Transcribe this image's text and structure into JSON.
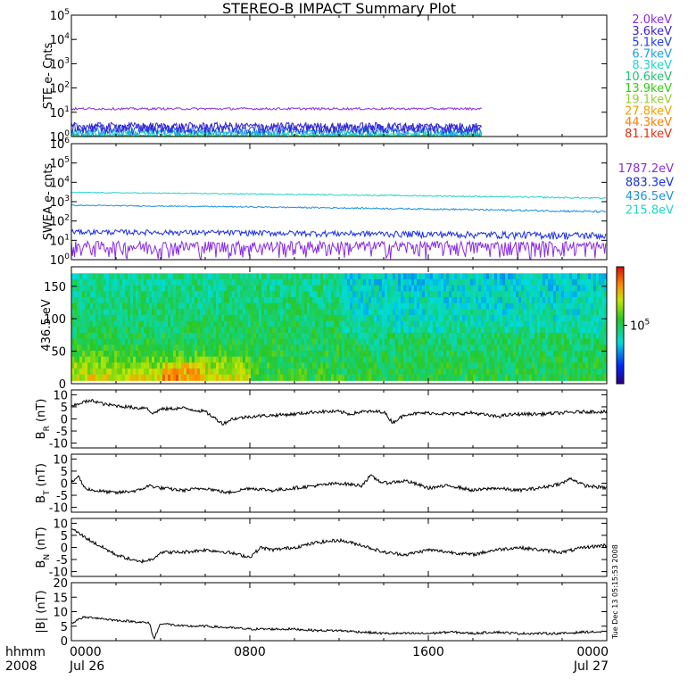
{
  "title": "STEREO-B IMPACT Summary Plot",
  "timestamp_note": "Tue Dec 13 05:15:53 2008",
  "chart_data": [
    {
      "type": "line",
      "panel": "STE electrons",
      "ylabel": "STE e- Cnts",
      "yscale": "log",
      "ylim": [
        1,
        100000
      ],
      "yticks": [
        {
          "base": "10",
          "exp": "0"
        },
        {
          "base": "10",
          "exp": "1"
        },
        {
          "base": "10",
          "exp": "2"
        },
        {
          "base": "10",
          "exp": "3"
        },
        {
          "base": "10",
          "exp": "4"
        },
        {
          "base": "10",
          "exp": "5"
        }
      ],
      "data_end_hours": 18.4,
      "series": [
        {
          "name": "2.0keV",
          "color": "#8a2be2",
          "level": 14,
          "noise": 1.5
        },
        {
          "name": "3.6keV",
          "color": "#3b1fd1",
          "level": 2.6,
          "noise": 1.2
        },
        {
          "name": "5.1keV",
          "color": "#2040e0",
          "level": 2.2,
          "noise": 1.0
        },
        {
          "name": "6.7keV",
          "color": "#1ea0e0",
          "level": 1.6,
          "noise": 0.6
        },
        {
          "name": "8.3keV",
          "color": "#22d3c8",
          "level": 1.3,
          "noise": 0.4
        },
        {
          "name": "10.6keV",
          "color": "#20c070",
          "level": 1.1,
          "noise": 0.2
        },
        {
          "name": "13.9keV",
          "color": "#33cc11",
          "level": 1.05,
          "noise": 0.1
        },
        {
          "name": "19.1keV",
          "color": "#9acd32",
          "level": 1.02,
          "noise": 0.05
        },
        {
          "name": "27.8keV",
          "color": "#f0a000",
          "level": 1.0,
          "noise": 0.0
        },
        {
          "name": "44.3keV",
          "color": "#ff7f00",
          "level": 1.0,
          "noise": 0.0
        },
        {
          "name": "81.1keV",
          "color": "#e03010",
          "level": 1.0,
          "noise": 0.0
        }
      ]
    },
    {
      "type": "line",
      "panel": "SWEA electrons",
      "ylabel": "SWEA e- cnts",
      "yscale": "log",
      "ylim": [
        1,
        1000000
      ],
      "yticks": [
        {
          "base": "10",
          "exp": "0"
        },
        {
          "base": "10",
          "exp": "1"
        },
        {
          "base": "10",
          "exp": "2"
        },
        {
          "base": "10",
          "exp": "3"
        },
        {
          "base": "10",
          "exp": "4"
        },
        {
          "base": "10",
          "exp": "5"
        },
        {
          "base": "10",
          "exp": "6"
        }
      ],
      "series": [
        {
          "name": "1787.2eV",
          "color": "#8a2be2",
          "start": 5,
          "end": 5,
          "noise": 4
        },
        {
          "name": "883.3eV",
          "color": "#1a2ee0",
          "start": 28,
          "end": 18,
          "noise": 8
        },
        {
          "name": "436.5eV",
          "color": "#1e90e0",
          "start": 650,
          "end": 300,
          "noise": 40
        },
        {
          "name": "215.8eV",
          "color": "#22d3c8",
          "start": 3000,
          "end": 1500,
          "noise": 150
        }
      ]
    },
    {
      "type": "heatmap",
      "panel": "436.5 eV pitch angle",
      "ylabel": "436.5 eV",
      "ylim": [
        0,
        180
      ],
      "yticks": [
        "0",
        "50",
        "100",
        "150"
      ],
      "colorbar_label": {
        "base": "10",
        "exp": "5"
      }
    },
    {
      "type": "line",
      "panel": "BR",
      "ylabel": {
        "main": "B",
        "sub": "R",
        "unit": "(nT)"
      },
      "ylim": [
        -12,
        12
      ],
      "yticks": [
        "-10",
        "-5",
        "0",
        "5",
        "10"
      ],
      "x": [
        0,
        0.5,
        1,
        1.5,
        2,
        3,
        3.4,
        3.6,
        4,
        5,
        6,
        6.8,
        7.2,
        8,
        9,
        10,
        11,
        12,
        12.5,
        13,
        14,
        14.4,
        15,
        16,
        17,
        18,
        19,
        20,
        21,
        22,
        23,
        24
      ],
      "values": [
        5,
        7,
        7.5,
        6,
        5.5,
        4.5,
        4.8,
        2,
        4,
        4.5,
        3,
        -2,
        0,
        1,
        1.5,
        2,
        3,
        3,
        2,
        3,
        3,
        -1.5,
        2,
        2.5,
        2,
        2.5,
        1,
        2,
        2,
        2.5,
        3,
        3
      ]
    },
    {
      "type": "line",
      "panel": "BT",
      "ylabel": {
        "main": "B",
        "sub": "T",
        "unit": "(nT)"
      },
      "ylim": [
        -12,
        12
      ],
      "yticks": [
        "-10",
        "-5",
        "0",
        "5",
        "10"
      ],
      "x": [
        0,
        0.3,
        0.6,
        1,
        2,
        3,
        3.5,
        4,
        5,
        6,
        7,
        8,
        9,
        10,
        11,
        12,
        13,
        13.4,
        14,
        15,
        16,
        17,
        18,
        19,
        20,
        21,
        22,
        22.4,
        23,
        24
      ],
      "values": [
        0,
        3,
        -2,
        -3,
        -4,
        -3,
        -1,
        -2,
        -3,
        -2,
        -4,
        -2,
        -3,
        -2,
        -1,
        0,
        -1,
        3,
        0,
        1,
        -2,
        -1,
        -3,
        -2,
        -3,
        -2,
        0,
        2,
        -1,
        -2
      ]
    },
    {
      "type": "line",
      "panel": "BN",
      "ylabel": {
        "main": "B",
        "sub": "N",
        "unit": "(nT)"
      },
      "ylim": [
        -12,
        12
      ],
      "yticks": [
        "-10",
        "-5",
        "0",
        "5",
        "10"
      ],
      "x": [
        0,
        0.3,
        1,
        2,
        3,
        3.6,
        4,
        5,
        6,
        7,
        8,
        8.5,
        9,
        10,
        11,
        12,
        13,
        14,
        15,
        16,
        17,
        18,
        19,
        20,
        21,
        22,
        23,
        24
      ],
      "values": [
        8,
        6,
        2,
        -3,
        -6,
        -5,
        -2,
        -2,
        -1,
        -2,
        -4,
        0,
        -1,
        0,
        2,
        3,
        1,
        -2,
        -3,
        -1,
        -2,
        -3,
        -1,
        0,
        -1,
        -2,
        0,
        1
      ]
    },
    {
      "type": "line",
      "panel": "B magnitude",
      "ylabel": {
        "main": "|B|",
        "sub": "",
        "unit": "(nT)"
      },
      "ylim": [
        0,
        20
      ],
      "yticks": [
        "0",
        "5",
        "10",
        "15",
        "20"
      ],
      "x": [
        0,
        0.5,
        1,
        2,
        3,
        3.5,
        3.7,
        4,
        5,
        6,
        7,
        8,
        9,
        10,
        11,
        12,
        13,
        14,
        15,
        16,
        17,
        18,
        19,
        20,
        21,
        22,
        23,
        24
      ],
      "values": [
        6,
        8,
        8,
        7,
        6.5,
        6,
        0.5,
        6,
        5,
        5,
        4.5,
        4,
        4,
        4,
        3.5,
        3.5,
        3,
        2.5,
        2.5,
        2.5,
        3,
        2.5,
        3,
        2.5,
        2.5,
        2.5,
        3,
        3
      ]
    }
  ],
  "x_axis": {
    "row_label": "hhmm",
    "year_label": "2008",
    "ticks": [
      {
        "hours": 0,
        "time": "0000",
        "date": "Jul 26"
      },
      {
        "hours": 8,
        "time": "0800",
        "date": ""
      },
      {
        "hours": 16,
        "time": "1600",
        "date": ""
      },
      {
        "hours": 24,
        "time": "0000",
        "date": "Jul 27"
      }
    ],
    "range_hours": [
      0,
      24
    ]
  }
}
